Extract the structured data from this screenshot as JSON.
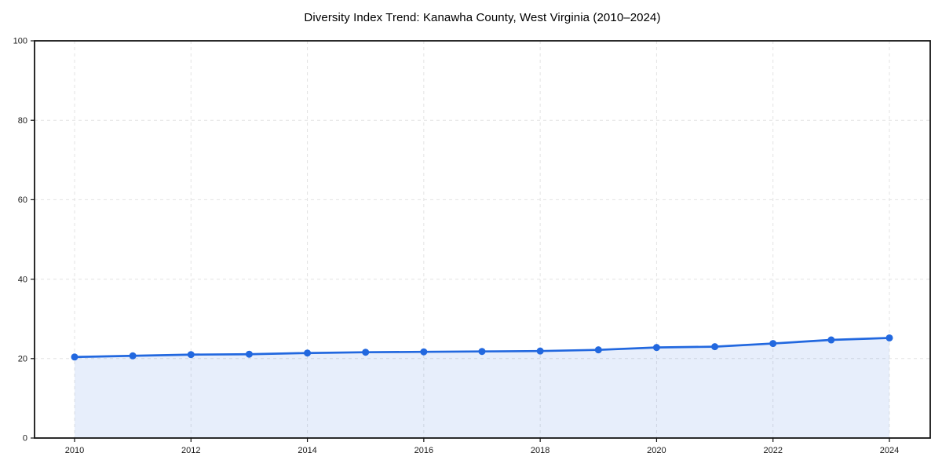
{
  "chart_data": {
    "type": "line",
    "title": "Diversity Index Trend: Kanawha County, West Virginia (2010–2024)",
    "x": [
      2010,
      2011,
      2012,
      2013,
      2014,
      2015,
      2016,
      2017,
      2018,
      2019,
      2020,
      2021,
      2022,
      2023,
      2024
    ],
    "values": [
      20.4,
      20.7,
      21.0,
      21.1,
      21.4,
      21.6,
      21.7,
      21.8,
      21.9,
      22.2,
      22.8,
      23.0,
      23.8,
      24.7,
      25.2
    ],
    "xlabel": "",
    "ylabel": "",
    "ylim": [
      0,
      100
    ],
    "yticks": [
      0,
      20,
      40,
      60,
      80,
      100
    ],
    "xticks": [
      2010,
      2012,
      2014,
      2016,
      2018,
      2020,
      2022,
      2024
    ],
    "grid": true,
    "grid_style": "dashed",
    "legend": "none",
    "marker": "circle",
    "colors": {
      "line": "#2268df",
      "marker": "#2268df",
      "fill": "rgba(34, 104, 223, 0.11)",
      "grid": "#e3e3e3",
      "spine": "#141414",
      "tick_text": "#1a1a1a",
      "title_text": "#000000",
      "background": "#ffffff"
    }
  }
}
